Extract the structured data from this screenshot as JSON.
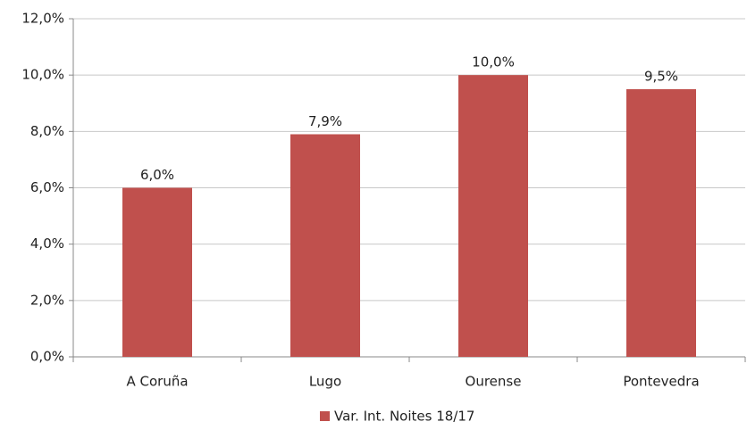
{
  "chart_data": {
    "type": "bar",
    "categories": [
      "A Coruña",
      "Lugo",
      "Ourense",
      "Pontevedra"
    ],
    "series": [
      {
        "name": "Var. Int. Noites 18/17",
        "color": "#c0504d",
        "values": [
          6.0,
          7.9,
          10.0,
          9.5
        ],
        "value_labels": [
          "6,0%",
          "7,9%",
          "10,0%",
          "9,5%"
        ]
      }
    ],
    "ylim": [
      0,
      12
    ],
    "yticks": [
      {
        "value": 0,
        "label": "0,0%"
      },
      {
        "value": 2,
        "label": "2,0%"
      },
      {
        "value": 4,
        "label": "4,0%"
      },
      {
        "value": 6,
        "label": "6,0%"
      },
      {
        "value": 8,
        "label": "8,0%"
      },
      {
        "value": 10,
        "label": "10,0%"
      },
      {
        "value": 12,
        "label": "12,0%"
      }
    ],
    "grid": true,
    "legend": "bottom"
  }
}
